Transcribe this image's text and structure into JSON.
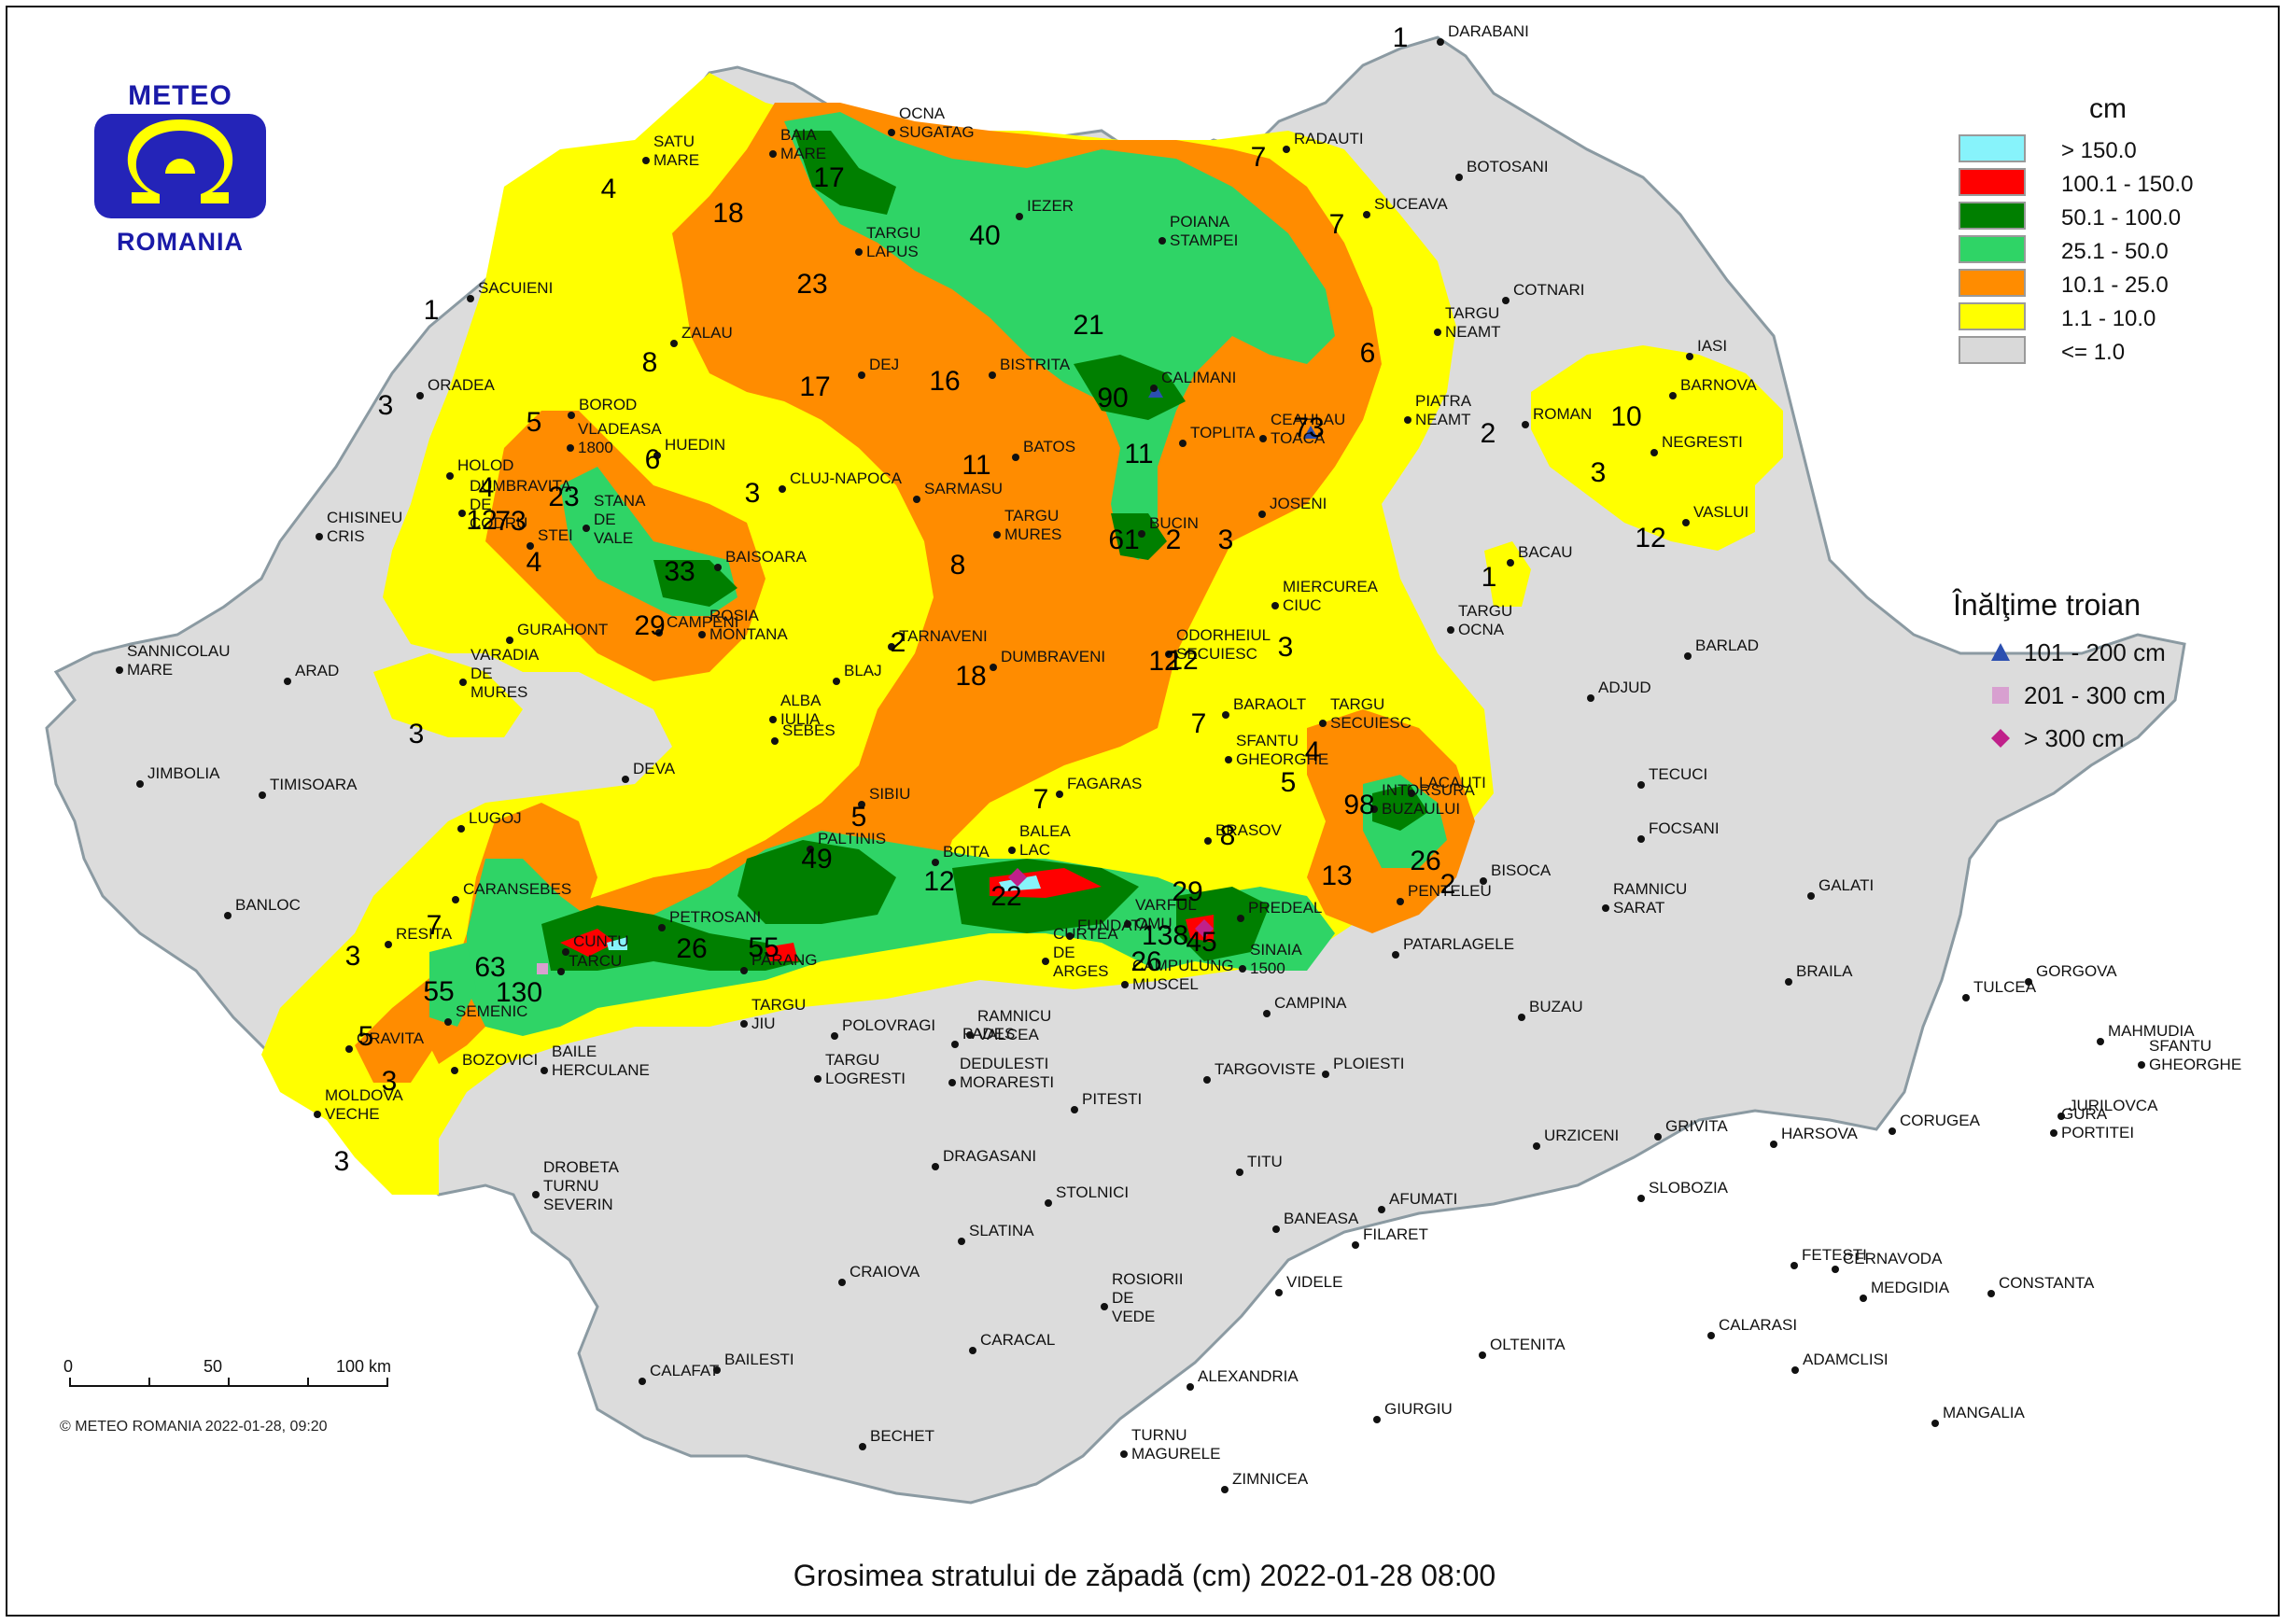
{
  "logo": {
    "top_text": "METEO",
    "bottom_text": "ROMANIA"
  },
  "legend": {
    "unit": "cm",
    "classes": [
      {
        "label": "> 150.0",
        "color": "#87f3fb"
      },
      {
        "label": "100.1 - 150.0",
        "color": "#ff0000"
      },
      {
        "label": "50.1 - 100.0",
        "color": "#007f00"
      },
      {
        "label": "25.1 - 50.0",
        "color": "#2fd466"
      },
      {
        "label": "10.1 - 25.0",
        "color": "#ff8c00"
      },
      {
        "label": "1.1 - 10.0",
        "color": "#ffff00"
      },
      {
        "label": "<= 1.0",
        "color": "#d9d9d9"
      }
    ]
  },
  "drift_legend": {
    "title": "Înălţime troian",
    "items": [
      {
        "label": "101 - 200 cm",
        "shape": "triangle",
        "color": "#2b4fb0"
      },
      {
        "label": "201 - 300 cm",
        "shape": "square",
        "color": "#d8a0d0"
      },
      {
        "label": "> 300 cm",
        "shape": "diamond",
        "color": "#c0208a"
      }
    ]
  },
  "scale_bar": {
    "labels": [
      "0",
      "50",
      "100 km"
    ]
  },
  "copyright": "© METEO ROMANIA 2022-01-28, 09:20",
  "title": "Grosimea stratului de zăpadă (cm)  2022-01-28 08:00",
  "cities": [
    "DARABANI",
    "RADAUTI",
    "SATU MARE",
    "OCNA SUGATAG",
    "BAIA MARE",
    "IEZER",
    "BOTOSANI",
    "SUCEAVA",
    "TARGU LAPUS",
    "POIANA STAMPEI",
    "TARGU NEAMT",
    "SACUIENI",
    "COTNARI",
    "IASI",
    "ZALAU",
    "DEJ",
    "BISTRITA",
    "CALIMANI",
    "BARNOVA",
    "ORADEA",
    "BOROD",
    "VLADEASA 1800",
    "HUEDIN",
    "PIATRA NEAMT",
    "ROMAN",
    "CEAHLAU TOACA",
    "TOPLITA",
    "NEGRESTI",
    "HOLOD",
    "BATOS",
    "CLUJ-NAPOCA",
    "SARMASU",
    "DUMBRAVITA DE CODRU",
    "CHISINEU CRIS",
    "STANA DE VALE",
    "JOSENI",
    "VASLUI",
    "BUCIN",
    "STEI",
    "BAISOARA",
    "TARGU MURES",
    "BACAU",
    "MIERCUREA CIUC",
    "GURAHONT",
    "CAMPENI",
    "ROSIA MONTANA",
    "TARNAVENI",
    "TARGU OCNA",
    "ODORHEIUL SECUIESC",
    "SANNICOLAU MARE",
    "ARAD",
    "VARADIA DE MURES",
    "BLAJ",
    "DUMBRAVENI",
    "BARLAD",
    "ALBA IULIA",
    "SEBES",
    "BARAOLT",
    "ADJUD",
    "TARGU SECUIESC",
    "SFANTU GHEORGHE",
    "JIMBOLIA",
    "TIMISOARA",
    "DEVA",
    "LACAUTI",
    "TECUCI",
    "SIBIU",
    "FAGARAS",
    "LUGOJ",
    "PALTINIS",
    "BOITA",
    "INTORSURA BUZAULUI",
    "BRASOV",
    "FOCSANI",
    "BALEA LAC",
    "VARFUL OMU",
    "BISOCA",
    "BANLOC",
    "CARANSEBES",
    "PETROSANI",
    "GALATI",
    "RAMNICU SARAT",
    "PENTELEU",
    "PREDEAL",
    "FUNDATA",
    "CUNTU",
    "TARCU",
    "PARANG",
    "SINAIA 1500",
    "PATARLAGELE",
    "CURTEA DE ARGES",
    "RESITA",
    "CAMPULUNG MUSCEL",
    "SEMENIC",
    "BRAILA",
    "TULCEA",
    "GORGOVA",
    "CAMPINA",
    "BUZAU",
    "ORAVITA",
    "PADES",
    "TARGU JIU",
    "POLOVRAGI",
    "RAMNICU VALCEA",
    "MAHMUDIA",
    "SFANTU GHEORGHE",
    "BOZOVICI",
    "BAILE HERCULANE",
    "TARGOVISTE",
    "PLOIESTI",
    "TARGU LOGRESTI",
    "DEDULESTI MORARESTI",
    "JURILOVCA",
    "GURA PORTITEI",
    "MOLDOVA VECHE",
    "PITESTI",
    "CORUGEA",
    "GRIVITA",
    "HARSOVA",
    "URZICENI",
    "DRAGASANI",
    "TITU",
    "DROBETA TURNU SEVERIN",
    "STOLNICI",
    "AFUMATI",
    "SLOBOZIA",
    "SLATINA",
    "BANEASA",
    "FILARET",
    "FETESTI",
    "CERNAVODA",
    "CRAIOVA",
    "VIDELE",
    "CONSTANTA",
    "MEDGIDIA",
    "ROSIORII DE VEDE",
    "CARACAL",
    "CALARASI",
    "BAILESTI",
    "OLTENITA",
    "ADAMCLISI",
    "CALAFAT",
    "ALEXANDRIA",
    "GIURGIU",
    "MANGALIA",
    "BECHET",
    "TURNU MAGURELE",
    "ZIMNICEA"
  ],
  "snow_values": [
    "1",
    "7",
    "4",
    "17",
    "18",
    "40",
    "7",
    "23",
    "21",
    "6",
    "1",
    "2",
    "8",
    "17",
    "16",
    "90",
    "73",
    "10",
    "3",
    "5",
    "6",
    "3",
    "11",
    "11",
    "2",
    "3",
    "4",
    "12",
    "73",
    "23",
    "12",
    "4",
    "33",
    "61",
    "3",
    "1",
    "12",
    "29",
    "3",
    "8",
    "2",
    "18",
    "12",
    "3",
    "7",
    "4",
    "5",
    "98",
    "7",
    "5",
    "8",
    "13",
    "2",
    "26",
    "49",
    "12",
    "22",
    "29",
    "7",
    "138",
    "26",
    "55",
    "63",
    "130",
    "3",
    "55",
    "5",
    "3",
    "3",
    "26",
    "45"
  ]
}
